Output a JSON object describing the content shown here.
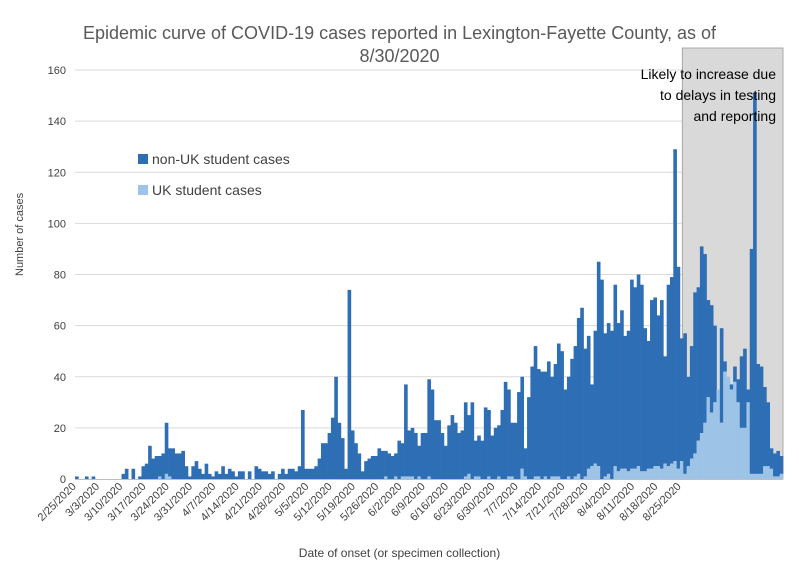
{
  "chart_data": {
    "type": "bar",
    "stacked": true,
    "title_line1": "Epidemic curve of COVID-19 cases reported in Lexington-Fayette County, as of",
    "title_line2": "8/30/2020",
    "xlabel": "Date of onset (or specimen collection)",
    "ylabel": "Number of cases",
    "ylim": [
      0,
      160
    ],
    "yticks": [
      0,
      20,
      40,
      60,
      80,
      100,
      120,
      140,
      160
    ],
    "grid": "horizontal",
    "legend_placement": "upper-left",
    "annotation": [
      "Likely to increase due",
      "to delays in testing",
      "and reporting"
    ],
    "shaded_region_start": "8/26/2020",
    "start_date": "2/25/2020",
    "x_tick_labels": [
      "2/25/2020",
      "3/3/2020",
      "3/10/2020",
      "3/17/2020",
      "3/24/2020",
      "3/31/2020",
      "4/7/2020",
      "4/14/2020",
      "4/21/2020",
      "4/28/2020",
      "5/5/2020",
      "5/12/2020",
      "5/19/2020",
      "5/26/2020",
      "6/2/2020",
      "6/9/2020",
      "6/16/2020",
      "6/23/2020",
      "6/30/2020",
      "7/7/2020",
      "7/14/2020",
      "7/21/2020",
      "7/28/2020",
      "8/4/2020",
      "8/11/2020",
      "8/18/2020",
      "8/25/2020"
    ],
    "series": [
      {
        "name": "non-UK student cases",
        "color": "#2e6eb5",
        "values": [
          1,
          0,
          0,
          1,
          0,
          1,
          0,
          0,
          0,
          0,
          0,
          0,
          0,
          0,
          2,
          4,
          0,
          4,
          0,
          1,
          5,
          6,
          13,
          8,
          9,
          9,
          10,
          22,
          12,
          12,
          10,
          10,
          11,
          5,
          1,
          5,
          7,
          4,
          2,
          6,
          2,
          1,
          3,
          2,
          5,
          2,
          4,
          3,
          1,
          3,
          3,
          0,
          3,
          0,
          5,
          4,
          3,
          3,
          2,
          3,
          0,
          2,
          4,
          2,
          4,
          4,
          3,
          5,
          27,
          4,
          4,
          4,
          5,
          8,
          14,
          14,
          18,
          24,
          40,
          22,
          16,
          4,
          74,
          19,
          14,
          10,
          3,
          7,
          8,
          9,
          9,
          12,
          11,
          11,
          10,
          9,
          10,
          15,
          14,
          37,
          19,
          20,
          18,
          13,
          18,
          18,
          39,
          35,
          23,
          23,
          18,
          13,
          21,
          25,
          22,
          18,
          19,
          30,
          25,
          30,
          15,
          17,
          15,
          28,
          27,
          17,
          20,
          21,
          27,
          38,
          35,
          22,
          22,
          34,
          40,
          12,
          32,
          44,
          52,
          43,
          42,
          42,
          46,
          40,
          45,
          53,
          50,
          35,
          40,
          47,
          52,
          63,
          67,
          51,
          56,
          37,
          58,
          85,
          78,
          57,
          61,
          58,
          76,
          61,
          66,
          56,
          58,
          78,
          75,
          80,
          76,
          59,
          54,
          70,
          71,
          64,
          70,
          48,
          76,
          79,
          129,
          83,
          55,
          57,
          40,
          52,
          73,
          75,
          91,
          88,
          70,
          68,
          60,
          35,
          59,
          46,
          40,
          37,
          44,
          39,
          48,
          51,
          35,
          90,
          151,
          45,
          44,
          36,
          30,
          12,
          10,
          11,
          9
        ]
      },
      {
        "name": "UK student cases",
        "color": "#9dc3e6",
        "values": [
          0,
          0,
          0,
          0,
          0,
          0,
          0,
          0,
          0,
          0,
          0,
          0,
          0,
          0,
          0,
          0,
          0,
          0,
          0,
          0,
          0,
          0,
          0,
          0,
          0,
          1,
          0,
          2,
          1,
          0,
          0,
          0,
          0,
          0,
          0,
          0,
          0,
          0,
          0,
          0,
          0,
          0,
          0,
          0,
          0,
          0,
          0,
          0,
          0,
          0,
          0,
          0,
          0,
          0,
          0,
          0,
          0,
          0,
          0,
          0,
          0,
          0,
          0,
          0,
          0,
          0,
          0,
          0,
          0,
          0,
          0,
          0,
          0,
          0,
          0,
          0,
          0,
          0,
          0,
          0,
          0,
          0,
          0,
          0,
          0,
          0,
          0,
          0,
          0,
          0,
          0,
          0,
          0,
          1,
          0,
          0,
          1,
          0,
          1,
          1,
          1,
          1,
          0,
          1,
          0,
          0,
          1,
          0,
          0,
          0,
          0,
          0,
          0,
          0,
          0,
          0,
          0,
          1,
          2,
          0,
          1,
          1,
          0,
          0,
          1,
          0,
          0,
          1,
          0,
          0,
          1,
          1,
          0,
          0,
          4,
          1,
          0,
          0,
          1,
          1,
          0,
          1,
          0,
          1,
          1,
          1,
          0,
          0,
          1,
          0,
          1,
          2,
          0,
          1,
          4,
          5,
          6,
          5,
          0,
          1,
          2,
          0,
          5,
          3,
          4,
          4,
          3,
          4,
          4,
          5,
          3,
          3,
          4,
          4,
          5,
          5,
          4,
          6,
          5,
          6,
          7,
          4,
          7,
          2,
          5,
          8,
          10,
          15,
          18,
          22,
          32,
          26,
          30,
          35,
          22,
          42,
          42,
          35,
          38,
          30,
          20,
          20,
          30,
          2,
          2,
          2,
          2,
          5,
          5,
          4,
          1,
          1,
          2
        ]
      }
    ]
  }
}
